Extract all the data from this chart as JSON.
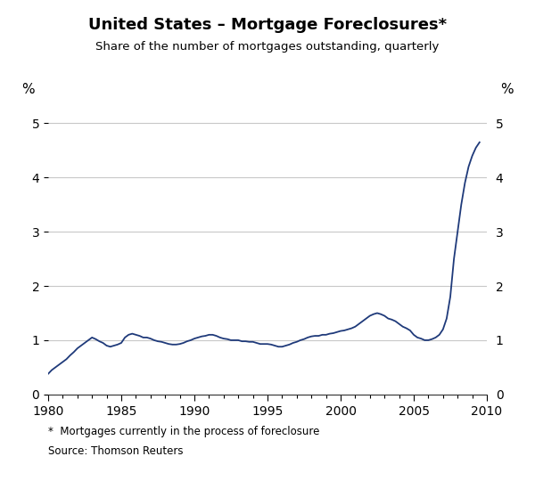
{
  "title": "United States – Mortgage Foreclosures*",
  "subtitle": "Share of the number of mortgages outstanding, quarterly",
  "footnote": "*  Mortgages currently in the process of foreclosure",
  "source": "Source: Thomson Reuters",
  "line_color": "#1f3a7a",
  "background_color": "#ffffff",
  "grid_color": "#c8c8c8",
  "xlim": [
    1980,
    2010
  ],
  "ylim": [
    0,
    5.5
  ],
  "yticks": [
    0,
    1,
    2,
    3,
    4,
    5
  ],
  "xticks": [
    1980,
    1985,
    1990,
    1995,
    2000,
    2005,
    2010
  ],
  "ylabel_left": "%",
  "ylabel_right": "%",
  "data": {
    "years": [
      1980.0,
      1980.25,
      1980.5,
      1980.75,
      1981.0,
      1981.25,
      1981.5,
      1981.75,
      1982.0,
      1982.25,
      1982.5,
      1982.75,
      1983.0,
      1983.25,
      1983.5,
      1983.75,
      1984.0,
      1984.25,
      1984.5,
      1984.75,
      1985.0,
      1985.25,
      1985.5,
      1985.75,
      1986.0,
      1986.25,
      1986.5,
      1986.75,
      1987.0,
      1987.25,
      1987.5,
      1987.75,
      1988.0,
      1988.25,
      1988.5,
      1988.75,
      1989.0,
      1989.25,
      1989.5,
      1989.75,
      1990.0,
      1990.25,
      1990.5,
      1990.75,
      1991.0,
      1991.25,
      1991.5,
      1991.75,
      1992.0,
      1992.25,
      1992.5,
      1992.75,
      1993.0,
      1993.25,
      1993.5,
      1993.75,
      1994.0,
      1994.25,
      1994.5,
      1994.75,
      1995.0,
      1995.25,
      1995.5,
      1995.75,
      1996.0,
      1996.25,
      1996.5,
      1996.75,
      1997.0,
      1997.25,
      1997.5,
      1997.75,
      1998.0,
      1998.25,
      1998.5,
      1998.75,
      1999.0,
      1999.25,
      1999.5,
      1999.75,
      2000.0,
      2000.25,
      2000.5,
      2000.75,
      2001.0,
      2001.25,
      2001.5,
      2001.75,
      2002.0,
      2002.25,
      2002.5,
      2002.75,
      2003.0,
      2003.25,
      2003.5,
      2003.75,
      2004.0,
      2004.25,
      2004.5,
      2004.75,
      2005.0,
      2005.25,
      2005.5,
      2005.75,
      2006.0,
      2006.25,
      2006.5,
      2006.75,
      2007.0,
      2007.25,
      2007.5,
      2007.75,
      2008.0,
      2008.25,
      2008.5,
      2008.75,
      2009.0,
      2009.25,
      2009.5
    ],
    "values": [
      0.38,
      0.45,
      0.5,
      0.55,
      0.6,
      0.65,
      0.72,
      0.78,
      0.85,
      0.9,
      0.95,
      1.0,
      1.05,
      1.02,
      0.98,
      0.95,
      0.9,
      0.88,
      0.9,
      0.92,
      0.95,
      1.05,
      1.1,
      1.12,
      1.1,
      1.08,
      1.05,
      1.05,
      1.03,
      1.0,
      0.98,
      0.97,
      0.95,
      0.93,
      0.92,
      0.92,
      0.93,
      0.95,
      0.98,
      1.0,
      1.03,
      1.05,
      1.07,
      1.08,
      1.1,
      1.1,
      1.08,
      1.05,
      1.03,
      1.02,
      1.0,
      1.0,
      1.0,
      0.98,
      0.98,
      0.97,
      0.97,
      0.95,
      0.93,
      0.93,
      0.93,
      0.92,
      0.9,
      0.88,
      0.88,
      0.9,
      0.92,
      0.95,
      0.97,
      1.0,
      1.02,
      1.05,
      1.07,
      1.08,
      1.08,
      1.1,
      1.1,
      1.12,
      1.13,
      1.15,
      1.17,
      1.18,
      1.2,
      1.22,
      1.25,
      1.3,
      1.35,
      1.4,
      1.45,
      1.48,
      1.5,
      1.48,
      1.45,
      1.4,
      1.38,
      1.35,
      1.3,
      1.25,
      1.22,
      1.18,
      1.1,
      1.05,
      1.03,
      1.0,
      1.0,
      1.02,
      1.05,
      1.1,
      1.2,
      1.4,
      1.8,
      2.5,
      3.0,
      3.5,
      3.9,
      4.2,
      4.4,
      4.55,
      4.65
    ]
  }
}
